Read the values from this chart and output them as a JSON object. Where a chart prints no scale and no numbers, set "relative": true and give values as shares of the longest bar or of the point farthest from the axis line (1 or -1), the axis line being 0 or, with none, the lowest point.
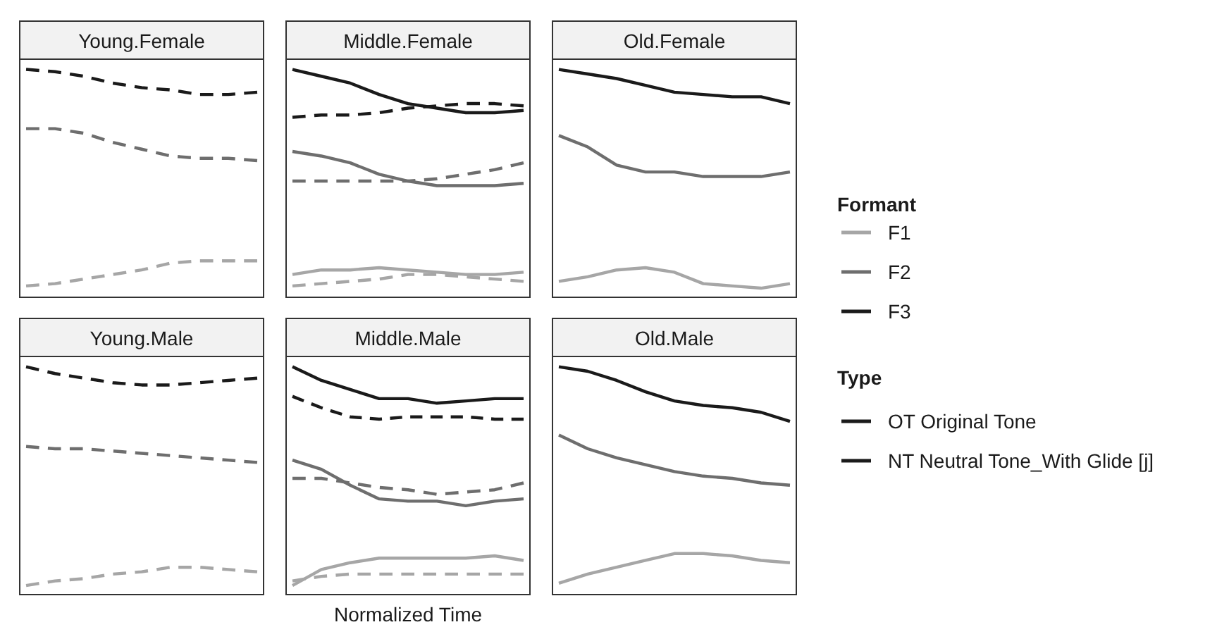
{
  "chart_data": [
    {
      "type": "line",
      "title": "Young.Female",
      "relative": true,
      "categories": [
        null,
        null,
        null,
        null,
        null,
        null,
        null,
        null,
        null
      ],
      "series": [
        {
          "color": "#a6a6a6",
          "line_style": "dashed",
          "values": [
            0.05,
            0.06,
            0.08,
            0.1,
            0.12,
            0.15,
            0.16,
            0.16,
            0.16
          ]
        },
        {
          "color": "#6e6e6e",
          "line_style": "dashed",
          "values": [
            0.74,
            0.74,
            0.72,
            0.68,
            0.65,
            0.62,
            0.61,
            0.61,
            0.6
          ]
        },
        {
          "color": "#1a1a1a",
          "line_style": "dashed",
          "values": [
            1,
            0.99,
            0.97,
            0.94,
            0.92,
            0.91,
            0.89,
            0.89,
            0.9
          ]
        }
      ]
    },
    {
      "type": "line",
      "title": "Middle.Female",
      "relative": true,
      "categories": [
        null,
        null,
        null,
        null,
        null,
        null,
        null,
        null,
        null
      ],
      "series": [
        {
          "color": "#a6a6a6",
          "line_style": "solid",
          "values": [
            0.1,
            0.12,
            0.12,
            0.13,
            0.12,
            0.11,
            0.1,
            0.1,
            0.11
          ]
        },
        {
          "color": "#a6a6a6",
          "line_style": "dashed",
          "values": [
            0.05,
            0.06,
            0.07,
            0.08,
            0.1,
            0.1,
            0.09,
            0.08,
            0.07
          ]
        },
        {
          "color": "#6e6e6e",
          "line_style": "solid",
          "values": [
            0.64,
            0.62,
            0.59,
            0.54,
            0.51,
            0.49,
            0.49,
            0.49,
            0.5
          ]
        },
        {
          "color": "#6e6e6e",
          "line_style": "dashed",
          "values": [
            0.51,
            0.51,
            0.51,
            0.51,
            0.51,
            0.52,
            0.54,
            0.56,
            0.59
          ]
        },
        {
          "color": "#1a1a1a",
          "line_style": "solid",
          "values": [
            1,
            0.97,
            0.94,
            0.89,
            0.85,
            0.83,
            0.81,
            0.81,
            0.82
          ]
        },
        {
          "color": "#1a1a1a",
          "line_style": "dashed",
          "values": [
            0.79,
            0.8,
            0.8,
            0.81,
            0.83,
            0.84,
            0.85,
            0.85,
            0.84
          ]
        }
      ]
    },
    {
      "type": "line",
      "title": "Old.Female",
      "relative": true,
      "categories": [
        null,
        null,
        null,
        null,
        null,
        null,
        null,
        null,
        null
      ],
      "legend": "right",
      "legend_title": "Formant",
      "annotations": [
        "Type",
        "OT Original Tone",
        "NT Neutral Tone_With Glide [j]"
      ],
      "series": [
        {
          "name": "F1",
          "color": "#a6a6a6",
          "line_style": "solid",
          "values": [
            0.07,
            0.09,
            0.12,
            0.13,
            0.11,
            0.06,
            0.05,
            0.04,
            0.06
          ]
        },
        {
          "name": "F2",
          "color": "#6e6e6e",
          "line_style": "solid",
          "values": [
            0.71,
            0.66,
            0.58,
            0.55,
            0.55,
            0.53,
            0.53,
            0.53,
            0.55
          ]
        },
        {
          "name": "F3",
          "color": "#1a1a1a",
          "line_style": "solid",
          "values": [
            1,
            0.98,
            0.96,
            0.93,
            0.9,
            0.89,
            0.88,
            0.88,
            0.85
          ]
        }
      ]
    },
    {
      "type": "line",
      "title": "Young.Male",
      "relative": true,
      "categories": [
        null,
        null,
        null,
        null,
        null,
        null,
        null,
        null,
        null
      ],
      "series": [
        {
          "color": "#a6a6a6",
          "line_style": "dashed",
          "values": [
            0.04,
            0.06,
            0.07,
            0.09,
            0.1,
            0.12,
            0.12,
            0.11,
            0.1
          ]
        },
        {
          "color": "#6e6e6e",
          "line_style": "dashed",
          "values": [
            0.65,
            0.64,
            0.64,
            0.63,
            0.62,
            0.61,
            0.6,
            0.59,
            0.58
          ]
        },
        {
          "color": "#1a1a1a",
          "line_style": "dashed",
          "values": [
            1,
            0.97,
            0.95,
            0.93,
            0.92,
            0.92,
            0.93,
            0.94,
            0.95
          ]
        }
      ]
    },
    {
      "type": "line",
      "title": "Middle.Male",
      "xlabel": "Normalized Time",
      "relative": true,
      "categories": [
        null,
        null,
        null,
        null,
        null,
        null,
        null,
        null,
        null
      ],
      "series": [
        {
          "color": "#a6a6a6",
          "line_style": "solid",
          "values": [
            0.04,
            0.11,
            0.14,
            0.16,
            0.16,
            0.16,
            0.16,
            0.17,
            0.15
          ]
        },
        {
          "color": "#a6a6a6",
          "line_style": "dashed",
          "values": [
            0.06,
            0.08,
            0.09,
            0.09,
            0.09,
            0.09,
            0.09,
            0.09,
            0.09
          ]
        },
        {
          "color": "#6e6e6e",
          "line_style": "solid",
          "values": [
            0.59,
            0.55,
            0.48,
            0.42,
            0.41,
            0.41,
            0.39,
            0.41,
            0.42
          ]
        },
        {
          "color": "#6e6e6e",
          "line_style": "dashed",
          "values": [
            0.51,
            0.51,
            0.49,
            0.47,
            0.46,
            0.44,
            0.45,
            0.46,
            0.49
          ]
        },
        {
          "color": "#1a1a1a",
          "line_style": "solid",
          "values": [
            1,
            0.94,
            0.9,
            0.86,
            0.86,
            0.84,
            0.85,
            0.86,
            0.86
          ]
        },
        {
          "color": "#1a1a1a",
          "line_style": "dashed",
          "values": [
            0.87,
            0.82,
            0.78,
            0.77,
            0.78,
            0.78,
            0.78,
            0.77,
            0.77
          ]
        }
      ]
    },
    {
      "type": "line",
      "title": "Old.Male",
      "relative": true,
      "categories": [
        null,
        null,
        null,
        null,
        null,
        null,
        null,
        null,
        null
      ],
      "series": [
        {
          "color": "#a6a6a6",
          "line_style": "solid",
          "values": [
            0.05,
            0.09,
            0.12,
            0.15,
            0.18,
            0.18,
            0.17,
            0.15,
            0.14
          ]
        },
        {
          "color": "#6e6e6e",
          "line_style": "solid",
          "values": [
            0.7,
            0.64,
            0.6,
            0.57,
            0.54,
            0.52,
            0.51,
            0.49,
            0.48
          ]
        },
        {
          "color": "#1a1a1a",
          "line_style": "solid",
          "values": [
            1,
            0.98,
            0.94,
            0.89,
            0.85,
            0.83,
            0.82,
            0.8,
            0.76
          ]
        }
      ]
    }
  ]
}
